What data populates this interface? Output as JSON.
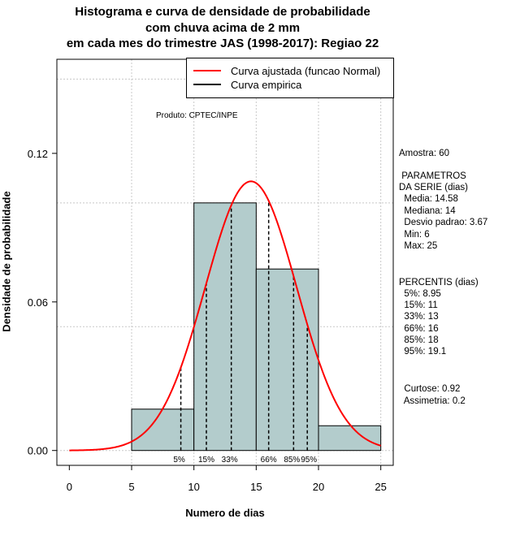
{
  "title": {
    "line1": "Histograma e curva de densidade de probabilidade",
    "line2": "com chuva acima de 2 mm",
    "line3": "em cada mes do trimestre JAS (1998-2017): Regiao 22"
  },
  "legend": {
    "fitted": "Curva ajustada (funcao Normal)",
    "empirical": "Curva empirica"
  },
  "produto": "Produto: CPTEC/INPE",
  "stats": {
    "amostra": "Amostra: 60",
    "param_title1": " PARAMETROS",
    "param_title2": "DA SERIE (dias)",
    "media": "  Media: 14.58",
    "mediana": "  Mediana: 14",
    "desvio": "  Desvio padrao: 3.67",
    "min": "  Min: 6",
    "max": "  Max: 25",
    "percentis_title": "PERCENTIS (dias)",
    "p5": "  5%: 8.95",
    "p15": "  15%: 11",
    "p33": "  33%: 13",
    "p66": "  66%: 16",
    "p85": "  85%: 18",
    "p95": "  95%: 19.1",
    "curtose": "  Curtose: 0.92",
    "assimetria": "  Assimetria: 0.2"
  },
  "chart_data": {
    "type": "histogram",
    "xlabel": "Numero de dias",
    "ylabel": "Densidade de probabilidade",
    "xlim": [
      -1,
      26
    ],
    "ylim": [
      -0.006,
      0.158
    ],
    "x_ticks": [
      0,
      5,
      10,
      15,
      20,
      25
    ],
    "y_ticks": [
      0.0,
      0.06,
      0.12
    ],
    "y_tick_labels": [
      "0.00",
      "0.06",
      "0.12"
    ],
    "grid_x": [
      5,
      10,
      15,
      20,
      25
    ],
    "grid_y": [
      0,
      0.05,
      0.1,
      0.15
    ],
    "bins": [
      {
        "from": 5,
        "to": 10,
        "density": 0.0167
      },
      {
        "from": 10,
        "to": 15,
        "density": 0.1
      },
      {
        "from": 15,
        "to": 20,
        "density": 0.0733
      },
      {
        "from": 20,
        "to": 25,
        "density": 0.01
      }
    ],
    "normal_fit": {
      "mean": 14.58,
      "sd": 3.67,
      "from": 0,
      "to": 25
    },
    "percentiles": [
      {
        "label": "5%",
        "value": 8.95
      },
      {
        "label": "15%",
        "value": 11
      },
      {
        "label": "33%",
        "value": 13
      },
      {
        "label": "66%",
        "value": 16
      },
      {
        "label": "85%",
        "value": 18
      },
      {
        "label": "95%",
        "value": 19.1
      }
    ],
    "colors": {
      "bar": "#b3cccc",
      "fit": "#ff0000",
      "empirical": "#000000",
      "grid": "#c8c8c8"
    }
  }
}
